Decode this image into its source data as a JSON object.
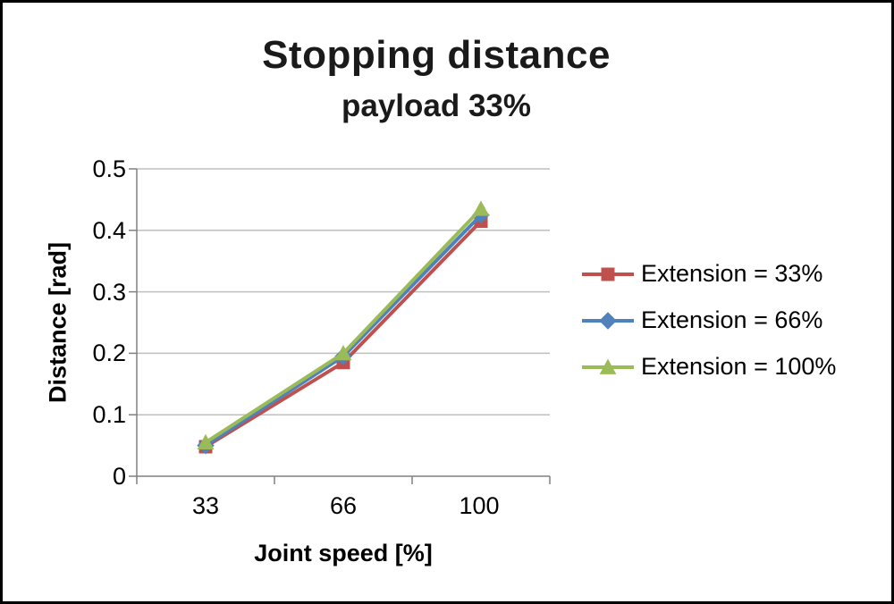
{
  "chart_data": {
    "type": "line",
    "title": "Stopping distance",
    "subtitle": "payload 33%",
    "xlabel": "Joint speed [%]",
    "ylabel": "Distance [rad]",
    "categories": [
      33,
      66,
      100
    ],
    "x_tick_labels": [
      "33",
      "66",
      "100"
    ],
    "y_tick_labels": [
      "0.5",
      "0.4",
      "0.3",
      "0.2",
      "0.1",
      "0"
    ],
    "ylim": [
      0,
      0.5
    ],
    "grid": "horizontal",
    "legend_position": "right",
    "series": [
      {
        "name": "Extension = 33%",
        "marker": "square",
        "color": "#C0504D",
        "values": [
          0.048,
          0.185,
          0.415
        ]
      },
      {
        "name": "Extension = 66%",
        "marker": "diamond",
        "color": "#4F81BD",
        "values": [
          0.05,
          0.195,
          0.425
        ]
      },
      {
        "name": "Extension = 100%",
        "marker": "triangle",
        "color": "#9BBB59",
        "values": [
          0.055,
          0.2,
          0.435
        ]
      }
    ],
    "colors": {
      "gridline": "#BFBFBF",
      "axis": "#808080"
    }
  }
}
